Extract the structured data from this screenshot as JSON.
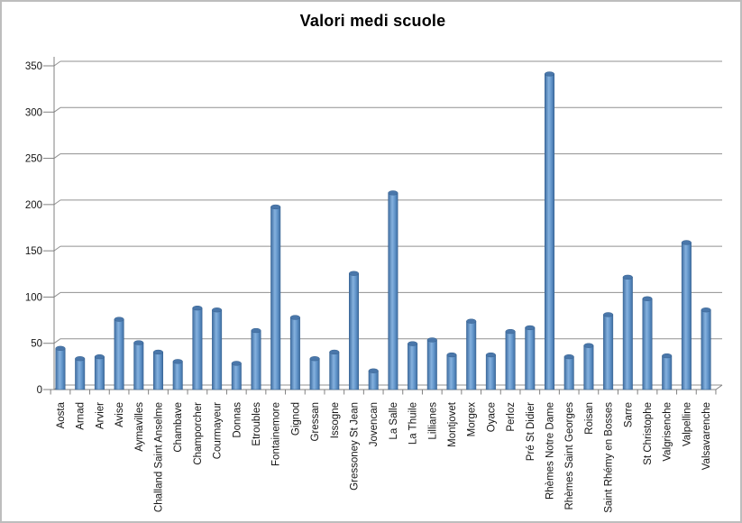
{
  "window": {
    "background_color": "#ffffff",
    "border_color": "#bdbdbd"
  },
  "chart_data": {
    "type": "bar",
    "title": "Valori medi scuole",
    "xlabel": "",
    "ylabel": "",
    "ylim": [
      0,
      350
    ],
    "yticks": [
      0,
      50,
      100,
      150,
      200,
      250,
      300,
      350
    ],
    "grid": true,
    "legend": "none",
    "gridline_color": "#919191",
    "axis_color": "#808080",
    "tick_label_color": "#141414",
    "bar_color": "#4f81bd",
    "bar_gradient": [
      "#3e6da1",
      "#85b1de",
      "#6497cc",
      "#3e6da1"
    ],
    "bar_cap_color": "#4a77aa",
    "bar_outline_color": "#35608f",
    "categories": [
      "Aosta",
      "Arnad",
      "Arvier",
      "Avise",
      "Aymavilles",
      "Challand Saint Anselme",
      "Chambave",
      "Champorcher",
      "Courmayeur",
      "Donnas",
      "Etroubles",
      "Fontainemore",
      "Gignod",
      "Gressan",
      "Issogne",
      "Gressoney St Jean",
      "Jovencan",
      "La Salle",
      "La Thuile",
      "Lillianes",
      "Montjovet",
      "Morgex",
      "Oyace",
      "Perloz",
      "Pré St Didier",
      "Rhèmes Notre Dame",
      "Rhèmes Saint Georges",
      "Roisan",
      "Saint Rhémy en Bosses",
      "Sarre",
      "St Christophe",
      "Valgrisenche",
      "Valpelline",
      "Valsavarenche"
    ],
    "values": [
      44,
      33,
      35,
      75,
      50,
      40,
      30,
      87,
      85,
      28,
      63,
      195,
      77,
      33,
      40,
      124,
      20,
      210,
      49,
      53,
      37,
      73,
      37,
      62,
      66,
      337,
      35,
      47,
      80,
      120,
      97,
      36,
      157,
      85
    ]
  }
}
